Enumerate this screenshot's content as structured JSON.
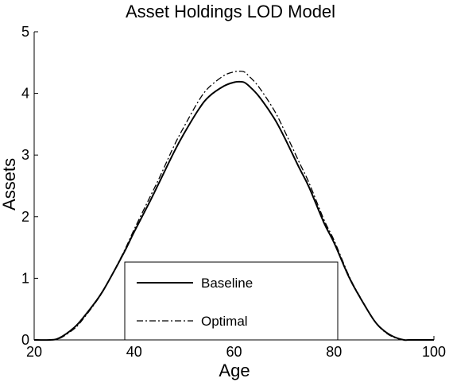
{
  "chart_data": {
    "type": "line",
    "title": "Asset Holdings LOD Model",
    "xlabel": "Age",
    "ylabel": "Assets",
    "xlim": [
      20,
      100
    ],
    "ylim": [
      0,
      5
    ],
    "xticks": [
      "20",
      "40",
      "60",
      "80",
      "100"
    ],
    "yticks": [
      "0",
      "1",
      "2",
      "3",
      "4",
      "5"
    ],
    "grid": false,
    "legend_position": "bottom-center",
    "series": [
      {
        "name": "Baseline",
        "style": "solid",
        "color": "#000000",
        "x": [
          20,
          23,
          25,
          28,
          30,
          33,
          35,
          38,
          40,
          43,
          45,
          48,
          50,
          53,
          55,
          58,
          60,
          61,
          62,
          63,
          65,
          68,
          70,
          73,
          75,
          78,
          80,
          83,
          85,
          88,
          90,
          92,
          94,
          95,
          97,
          100
        ],
        "y": [
          0,
          0,
          0.03,
          0.2,
          0.38,
          0.7,
          0.97,
          1.42,
          1.75,
          2.22,
          2.55,
          3.05,
          3.35,
          3.75,
          3.95,
          4.12,
          4.18,
          4.19,
          4.18,
          4.12,
          3.95,
          3.6,
          3.3,
          2.8,
          2.48,
          1.9,
          1.58,
          1.02,
          0.72,
          0.32,
          0.15,
          0.05,
          0,
          0,
          0,
          0
        ]
      },
      {
        "name": "Optimal",
        "style": "dashdot",
        "color": "#000000",
        "x": [
          20,
          23,
          25,
          28,
          30,
          33,
          35,
          38,
          40,
          43,
          45,
          48,
          50,
          53,
          55,
          58,
          60,
          61,
          62,
          63,
          65,
          68,
          70,
          73,
          75,
          78,
          80,
          83,
          85,
          88,
          90,
          92,
          94,
          95,
          97,
          100
        ],
        "y": [
          0,
          0,
          0.02,
          0.18,
          0.36,
          0.69,
          0.97,
          1.44,
          1.79,
          2.29,
          2.62,
          3.15,
          3.46,
          3.89,
          4.1,
          4.29,
          4.35,
          4.36,
          4.35,
          4.28,
          4.1,
          3.73,
          3.41,
          2.89,
          2.55,
          1.95,
          1.62,
          1.04,
          0.73,
          0.32,
          0.14,
          0.04,
          0,
          0,
          0,
          0
        ]
      }
    ]
  }
}
